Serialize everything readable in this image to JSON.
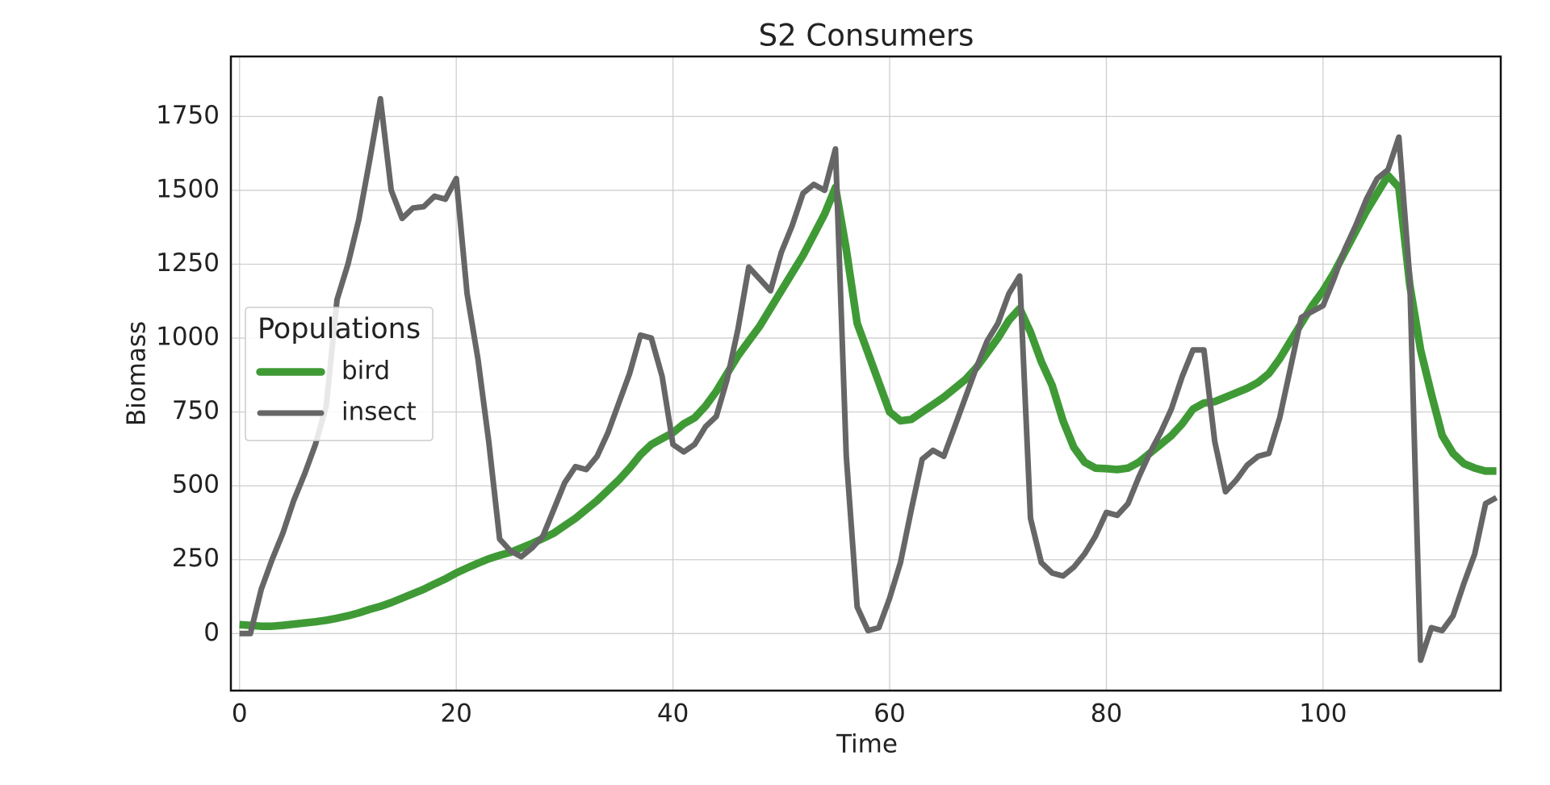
{
  "chart_data": {
    "type": "line",
    "title": "S2 Consumers",
    "xlabel": "Time",
    "ylabel": "Biomass",
    "legend_title": "Populations",
    "legend_position": "center left",
    "grid": true,
    "xlim": [
      -0.8,
      116.4
    ],
    "ylim": [
      -193,
      1953
    ],
    "xticks": [
      0,
      20,
      40,
      60,
      80,
      100
    ],
    "yticks": [
      0,
      250,
      500,
      750,
      1000,
      1250,
      1500,
      1750
    ],
    "x": [
      0,
      1,
      2,
      3,
      4,
      5,
      6,
      7,
      8,
      9,
      10,
      11,
      12,
      13,
      14,
      15,
      16,
      17,
      18,
      19,
      20,
      21,
      22,
      23,
      24,
      25,
      26,
      27,
      28,
      29,
      30,
      31,
      32,
      33,
      34,
      35,
      36,
      37,
      38,
      39,
      40,
      41,
      42,
      43,
      44,
      45,
      46,
      47,
      48,
      49,
      50,
      51,
      52,
      53,
      54,
      55,
      56,
      57,
      58,
      59,
      60,
      61,
      62,
      63,
      64,
      65,
      66,
      67,
      68,
      69,
      70,
      71,
      72,
      73,
      74,
      75,
      76,
      77,
      78,
      79,
      80,
      81,
      82,
      83,
      84,
      85,
      86,
      87,
      88,
      89,
      90,
      91,
      92,
      93,
      94,
      95,
      96,
      97,
      98,
      99,
      100,
      101,
      102,
      103,
      104,
      105,
      106,
      107,
      108,
      109,
      110,
      111,
      112,
      113,
      114,
      115,
      116
    ],
    "series": [
      {
        "name": "bird",
        "color": "#3f9a36",
        "width": 9.5,
        "values": [
          30,
          28,
          25,
          25,
          28,
          32,
          36,
          40,
          45,
          52,
          60,
          70,
          82,
          92,
          105,
          120,
          135,
          150,
          168,
          185,
          205,
          222,
          238,
          253,
          265,
          275,
          290,
          305,
          322,
          340,
          365,
          390,
          420,
          450,
          485,
          520,
          560,
          605,
          640,
          660,
          680,
          710,
          730,
          770,
          820,
          880,
          940,
          990,
          1040,
          1100,
          1160,
          1220,
          1280,
          1350,
          1420,
          1510,
          1300,
          1050,
          950,
          850,
          750,
          720,
          725,
          750,
          775,
          800,
          830,
          860,
          900,
          950,
          1000,
          1060,
          1100,
          1020,
          920,
          840,
          720,
          630,
          580,
          560,
          558,
          555,
          560,
          580,
          610,
          640,
          670,
          710,
          760,
          780,
          785,
          800,
          815,
          830,
          850,
          880,
          930,
          990,
          1050,
          1110,
          1160,
          1220,
          1290,
          1360,
          1430,
          1490,
          1550,
          1510,
          1180,
          960,
          810,
          670,
          610,
          575,
          560,
          550,
          550
        ]
      },
      {
        "name": "insect",
        "color": "#666666",
        "width": 7,
        "values": [
          0,
          0,
          150,
          250,
          340,
          450,
          540,
          640,
          770,
          1130,
          1250,
          1400,
          1600,
          1810,
          1500,
          1405,
          1440,
          1445,
          1480,
          1470,
          1540,
          1150,
          930,
          650,
          320,
          280,
          260,
          290,
          330,
          420,
          510,
          565,
          555,
          600,
          680,
          780,
          880,
          1010,
          1000,
          870,
          640,
          615,
          640,
          700,
          735,
          860,
          1030,
          1240,
          1200,
          1160,
          1290,
          1380,
          1490,
          1520,
          1500,
          1640,
          600,
          90,
          10,
          20,
          120,
          240,
          420,
          590,
          620,
          600,
          700,
          800,
          900,
          990,
          1050,
          1150,
          1210,
          390,
          240,
          205,
          195,
          225,
          270,
          330,
          410,
          400,
          440,
          530,
          610,
          680,
          760,
          870,
          960,
          960,
          650,
          480,
          520,
          570,
          600,
          610,
          730,
          900,
          1070,
          1090,
          1110,
          1200,
          1300,
          1380,
          1470,
          1540,
          1570,
          1680,
          1200,
          -90,
          20,
          10,
          60,
          170,
          270,
          440,
          460
        ]
      }
    ]
  }
}
